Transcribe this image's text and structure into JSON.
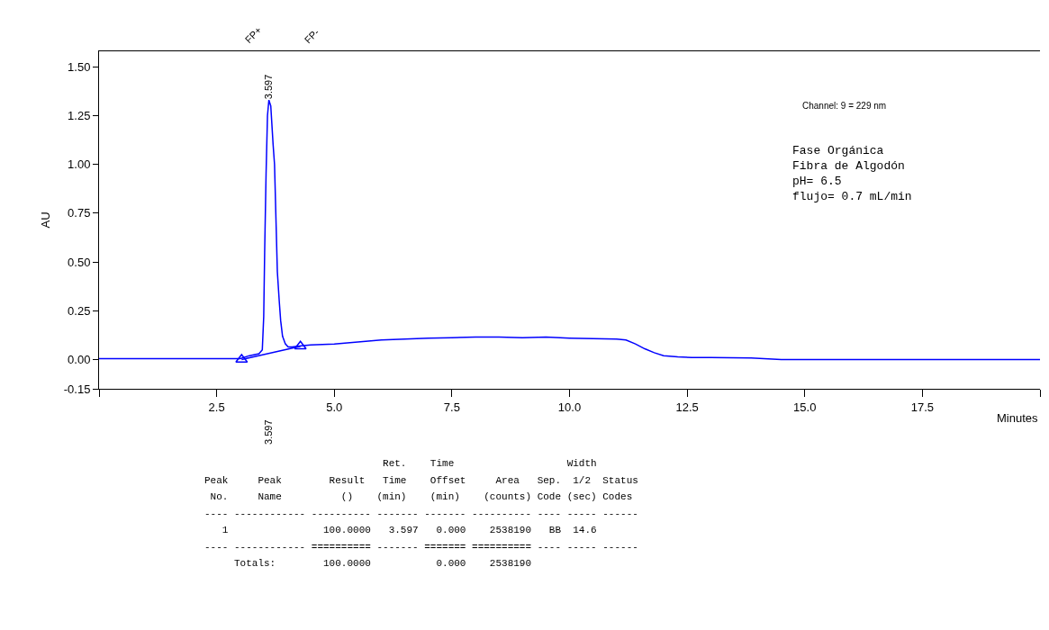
{
  "chart_data": {
    "type": "line",
    "xlabel": "Minutes",
    "ylabel": "AU",
    "xlim": [
      0,
      20
    ],
    "xticks": [
      {
        "value": 0,
        "label": null
      },
      2.5,
      {
        "value": 5,
        "label": "5.0"
      },
      7.5,
      {
        "value": 10,
        "label": "10.0"
      },
      12.5,
      {
        "value": 15,
        "label": "15.0"
      },
      17.5,
      {
        "value": 20,
        "label": null
      }
    ],
    "ylim": [
      -0.15,
      1.58
    ],
    "yticks": [
      -0.15,
      {
        "value": 0,
        "label": "0.00"
      },
      0.25,
      {
        "value": 0.5,
        "label": "0.50"
      },
      0.75,
      {
        "value": 1,
        "label": "1.00"
      },
      1.25,
      {
        "value": 1.5,
        "label": "1.50"
      }
    ],
    "series": [
      {
        "color": "#0000ff",
        "marker": "none",
        "x": [
          0,
          1,
          2,
          3.0,
          3.2,
          3.4,
          3.47,
          3.5,
          3.52,
          3.55,
          3.58,
          3.61,
          3.65,
          3.7,
          3.73,
          3.79,
          3.83,
          3.86,
          3.9,
          3.96,
          4.02,
          4.1,
          4.3,
          4.5,
          5.0,
          5.5,
          6.0,
          6.5,
          7.0,
          7.5,
          8.0,
          8.5,
          9.0,
          9.5,
          10.0,
          10.5,
          11.0,
          11.2,
          11.4,
          11.6,
          11.8,
          12.0,
          12.3,
          12.6,
          13.0,
          13.86,
          14.5,
          16,
          18,
          20
        ],
        "values": [
          0.005,
          0.005,
          0.005,
          0.005,
          0.02,
          0.03,
          0.05,
          0.22,
          0.55,
          0.95,
          1.25,
          1.33,
          1.3,
          1.1,
          1.0,
          0.45,
          0.3,
          0.2,
          0.12,
          0.08,
          0.065,
          0.065,
          0.07,
          0.075,
          0.08,
          0.09,
          0.1,
          0.105,
          0.11,
          0.112,
          0.115,
          0.115,
          0.112,
          0.115,
          0.11,
          0.107,
          0.105,
          0.1,
          0.08,
          0.055,
          0.035,
          0.02,
          0.014,
          0.01,
          0.01,
          0.008,
          0.0,
          0.0,
          0.0,
          0.0
        ]
      },
      {
        "color": "#0000ff",
        "marker": "triangle",
        "x": [
          3.03,
          4.28
        ],
        "values": [
          0.0,
          0.068
        ]
      }
    ],
    "annotations": [
      "Channel: 9 = 229 nm",
      "Fase Orgánica\nFibra de Algodón\npH= 6.5\nflujo= 0.7 mL/min",
      "                              Ret.    Time                   Width",
      "Peak     Peak        Result   Time    Offset     Area   Sep.  1/2  Status",
      " No.     Name          ()    (min)    (min)    (counts) Code (sec) Codes",
      "---- ------------ ---------- ------- ------- ---------- ---- ----- ------",
      "   1                100.0000   3.597   0.000    2538190   BB  14.6",
      "---- ------------ ========== ------- ======= ========== ---- ----- ------",
      "     Totals:        100.0000           0.000    2538190",
      "FP+",
      "FP-",
      "3.597",
      "3.597"
    ]
  }
}
